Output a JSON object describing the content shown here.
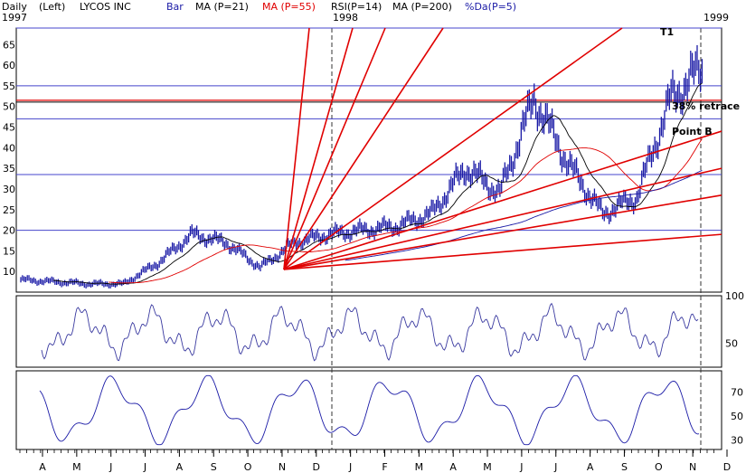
{
  "header": {
    "period": "Daily",
    "axis_side": "(Left)",
    "symbol": "LYCOS INC",
    "bar_label": "Bar",
    "ma21_label": "MA (P=21)",
    "ma55_label": "MA (P=55)",
    "rsi_label": "RSI(P=14)",
    "ma200_label": "MA (P=200)",
    "da_label": "%Da(P=5)",
    "year_1997": "1997",
    "year_1998": "1998",
    "year_1999": "1999"
  },
  "annotations": {
    "t1": "T1",
    "retrace": "38% retrace",
    "point_b": "Point B"
  },
  "colors": {
    "price_bars": "#1a1aa6",
    "ma21": "#000000",
    "ma55": "#e00000",
    "ma200": "#1a1aa6",
    "fan_lines": "#e00000",
    "grid": "#4444cc",
    "indicator": "#3a3aa0"
  },
  "chart_data": [
    {
      "type": "bar",
      "title": "LYCOS INC",
      "subtype": "daily price bars with moving averages and fan lines",
      "y_ticks": [
        10,
        15,
        20,
        25,
        30,
        35,
        40,
        45,
        50,
        55,
        60,
        65
      ],
      "ylim": [
        5,
        69
      ],
      "x_months": [
        "A",
        "M",
        "J",
        "J",
        "A",
        "S",
        "O",
        "N",
        "D",
        "J",
        "F",
        "M",
        "A",
        "M",
        "J",
        "J",
        "A",
        "S",
        "O",
        "N",
        "D",
        "J"
      ],
      "price_key_points": [
        {
          "month": "Apr 97",
          "close": 8
        },
        {
          "month": "May 97",
          "close": 7.5
        },
        {
          "month": "Jun 97",
          "close": 7
        },
        {
          "month": "Jul 97",
          "close": 7
        },
        {
          "month": "Aug 97",
          "close": 12
        },
        {
          "month": "Sep 97",
          "close": 19
        },
        {
          "month": "Oct 97",
          "close": 17
        },
        {
          "month": "Nov 97",
          "close": 11
        },
        {
          "month": "Dec 97",
          "close": 17
        },
        {
          "month": "Jan 98",
          "close": 19
        },
        {
          "month": "Feb 98",
          "close": 20
        },
        {
          "month": "Mar 98",
          "close": 21
        },
        {
          "month": "Apr 98",
          "close": 24
        },
        {
          "month": "May 98",
          "close": 35
        },
        {
          "month": "Jun 98",
          "close": 29
        },
        {
          "month": "Jul 98",
          "close": 52
        },
        {
          "month": "Aug 98",
          "close": 36
        },
        {
          "month": "Sep 98",
          "close": 24
        },
        {
          "month": "Oct 98",
          "close": 28
        },
        {
          "month": "Nov 98",
          "close": 52
        },
        {
          "month": "Dec 98",
          "close": 60
        },
        {
          "month": "Jan 99",
          "close": 55
        }
      ],
      "horizontal_levels": [
        20,
        33.5,
        47,
        51.5,
        55,
        69
      ],
      "fan_origin": {
        "date": "Nov 97",
        "price": 10.5
      },
      "series": [
        {
          "name": "MA (P=21)"
        },
        {
          "name": "MA (P=55)"
        },
        {
          "name": "MA (P=200)"
        }
      ]
    },
    {
      "type": "line",
      "title": "RSI(P=14)",
      "y_ticks": [
        50,
        100
      ],
      "ylim": [
        25,
        100
      ]
    },
    {
      "type": "line",
      "title": "%Da(P=5)",
      "y_ticks": [
        30,
        50,
        70
      ],
      "ylim": [
        22,
        88
      ]
    }
  ]
}
